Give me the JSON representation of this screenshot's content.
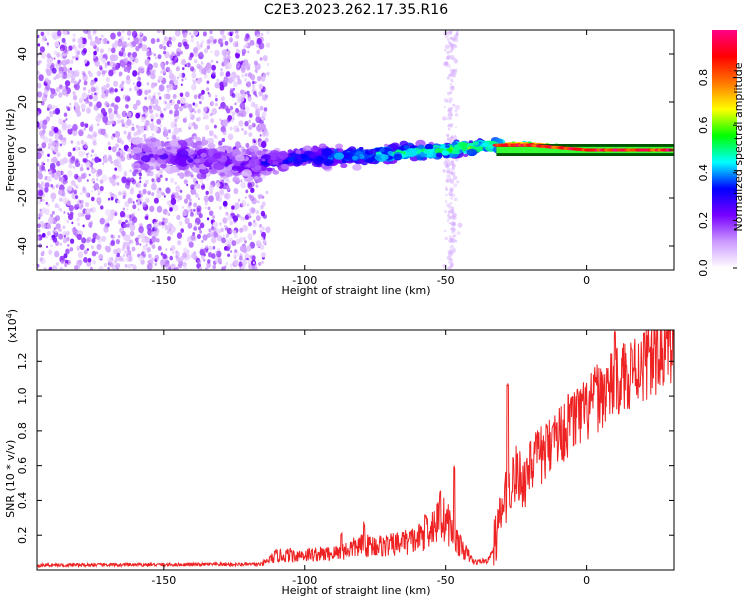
{
  "title": "C2E3.2023.262.17.35.R16",
  "chart_data": [
    {
      "type": "heatmap",
      "xlabel": "Height of straight line (km)",
      "ylabel": "Frequency (Hz)",
      "xlim": [
        -195,
        31
      ],
      "ylim": [
        -50,
        50
      ],
      "x_ticks": [
        -150,
        -100,
        -50,
        0
      ],
      "y_ticks": [
        -40,
        -20,
        0,
        20,
        40
      ],
      "colorbar": {
        "label": "Normalized spectral amplitude",
        "range": [
          0,
          1
        ],
        "ticks": [
          "0.0",
          "0.2",
          "0.4",
          "0.6",
          "0.8"
        ],
        "colors": [
          "#ffffff",
          "#cc99ff",
          "#7700ff",
          "#0000ff",
          "#00ffff",
          "#00ff00",
          "#ffff00",
          "#ff7700",
          "#ff0000",
          "#ff0088"
        ]
      },
      "ridge": [
        {
          "x": -150,
          "y": -2
        },
        {
          "x": -120,
          "y": -6
        },
        {
          "x": -100,
          "y": -3
        },
        {
          "x": -75,
          "y": -2
        },
        {
          "x": -50,
          "y": 0
        },
        {
          "x": -35,
          "y": 2
        },
        {
          "x": -20,
          "y": 2
        },
        {
          "x": 0,
          "y": 0
        },
        {
          "x": 15,
          "y": 0
        },
        {
          "x": 31,
          "y": 0
        }
      ]
    },
    {
      "type": "line",
      "xlabel": "Height of straight line (km)",
      "ylabel": "SNR (10 * v/v)",
      "y_multiplier": "(x10",
      "y_multiplier_exp": "4",
      "y_multiplier_close": ")",
      "xlim": [
        -195,
        31
      ],
      "ylim": [
        0,
        1.38
      ],
      "x_ticks": [
        -150,
        -100,
        -50,
        0
      ],
      "y_ticks": [
        0.2,
        0.4,
        0.6,
        0.8,
        1.0,
        1.2
      ],
      "y_tick_labels": [
        "0.2",
        "0.4",
        "0.6",
        "0.8",
        "1.0",
        "1.2"
      ],
      "color": "#ee2222",
      "baseline": [
        {
          "x": -195,
          "y": 0.025
        },
        {
          "x": -115,
          "y": 0.03
        },
        {
          "x": -110,
          "y": 0.07
        },
        {
          "x": -90,
          "y": 0.08
        },
        {
          "x": -80,
          "y": 0.12
        },
        {
          "x": -70,
          "y": 0.12
        },
        {
          "x": -60,
          "y": 0.15
        },
        {
          "x": -55,
          "y": 0.22
        },
        {
          "x": -50,
          "y": 0.25
        },
        {
          "x": -45,
          "y": 0.12
        },
        {
          "x": -40,
          "y": 0.04
        },
        {
          "x": -35,
          "y": 0.05
        },
        {
          "x": -32,
          "y": 0.15
        },
        {
          "x": -30,
          "y": 0.3
        },
        {
          "x": -27,
          "y": 0.45
        },
        {
          "x": -25,
          "y": 0.5
        },
        {
          "x": -22,
          "y": 0.46
        },
        {
          "x": -20,
          "y": 0.55
        },
        {
          "x": -15,
          "y": 0.62
        },
        {
          "x": -10,
          "y": 0.72
        },
        {
          "x": -5,
          "y": 0.8
        },
        {
          "x": 0,
          "y": 0.85
        },
        {
          "x": 5,
          "y": 0.95
        },
        {
          "x": 10,
          "y": 1.0
        },
        {
          "x": 15,
          "y": 1.07
        },
        {
          "x": 20,
          "y": 1.12
        },
        {
          "x": 25,
          "y": 1.16
        },
        {
          "x": 31,
          "y": 1.24
        }
      ],
      "peaks": [
        {
          "x": -105,
          "y": 0.12
        },
        {
          "x": -87,
          "y": 0.22
        },
        {
          "x": -79,
          "y": 0.28
        },
        {
          "x": -65,
          "y": 0.22
        },
        {
          "x": -57,
          "y": 0.32
        },
        {
          "x": -52,
          "y": 0.46
        },
        {
          "x": -47,
          "y": 0.6
        },
        {
          "x": -28,
          "y": 1.08
        },
        {
          "x": -20,
          "y": 0.74
        },
        {
          "x": -12,
          "y": 0.84
        },
        {
          "x": -5,
          "y": 1.02
        },
        {
          "x": 3,
          "y": 1.1
        },
        {
          "x": 10,
          "y": 1.38
        },
        {
          "x": 14,
          "y": 1.2
        },
        {
          "x": 16,
          "y": 1.28
        },
        {
          "x": 22,
          "y": 1.26
        }
      ]
    }
  ]
}
